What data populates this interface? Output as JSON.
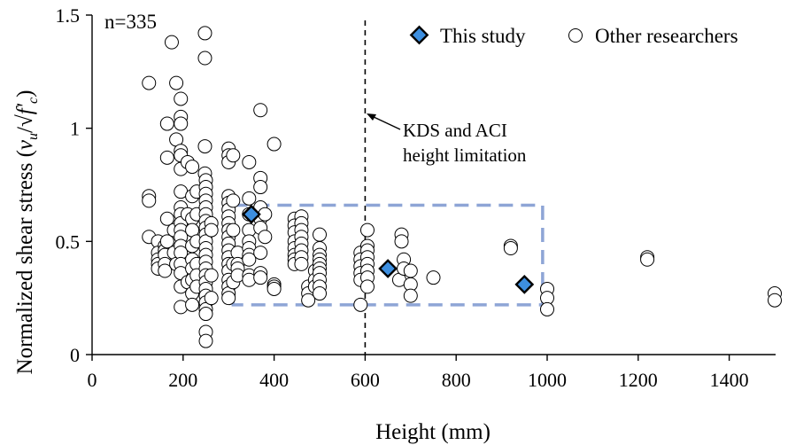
{
  "chart_data": {
    "type": "scatter",
    "title": "",
    "xlabel": "Height (mm)",
    "ylabel": "Normalized shear stress (v_u/√f'_c)",
    "ylabel_parts": {
      "main": "Normalized shear stress (",
      "v": "v",
      "u": "u",
      "slash": "/√",
      "f": "f'",
      "c": "c",
      "close": ")"
    },
    "xlim": [
      0,
      1500
    ],
    "ylim": [
      0,
      1.5
    ],
    "xticks": [
      0,
      200,
      400,
      600,
      800,
      1000,
      1200,
      1400
    ],
    "yticks": [
      0,
      0.5,
      1,
      1.5
    ],
    "xtick_labels": [
      "0",
      "200",
      "400",
      "600",
      "800",
      "1000",
      "1200",
      "1400"
    ],
    "ytick_labels": [
      "0",
      "0.5",
      "1",
      "1.5"
    ],
    "legend_position": "top-right",
    "grid": false,
    "colors": {
      "this_study": "#3d8fe0",
      "highlight_box": "#8ea5d6",
      "marker_edge": "#000000"
    },
    "annotations": {
      "sample_count": "n=335",
      "limit_line_x": 600,
      "limit_label": [
        "KDS and ACI",
        "height limitation"
      ],
      "highlight_box": {
        "x": [
          310,
          990
        ],
        "y": [
          0.22,
          0.66
        ]
      }
    },
    "series": [
      {
        "name": "This study",
        "marker": "diamond",
        "points": [
          [
            350,
            0.62
          ],
          [
            650,
            0.38
          ],
          [
            950,
            0.31
          ]
        ]
      },
      {
        "name": "Other researchers",
        "marker": "open-circle",
        "points": [
          [
            125,
            1.2
          ],
          [
            125,
            0.7
          ],
          [
            125,
            0.68
          ],
          [
            125,
            0.52
          ],
          [
            145,
            0.5
          ],
          [
            145,
            0.45
          ],
          [
            145,
            0.42
          ],
          [
            145,
            0.4
          ],
          [
            145,
            0.38
          ],
          [
            160,
            0.48
          ],
          [
            160,
            0.46
          ],
          [
            160,
            0.44
          ],
          [
            160,
            0.4
          ],
          [
            160,
            0.37
          ],
          [
            165,
            1.02
          ],
          [
            165,
            0.87
          ],
          [
            165,
            0.6
          ],
          [
            165,
            0.5
          ],
          [
            175,
            1.38
          ],
          [
            180,
            0.55
          ],
          [
            180,
            0.45
          ],
          [
            185,
            1.2
          ],
          [
            185,
            0.95
          ],
          [
            185,
            0.4
          ],
          [
            195,
            1.13
          ],
          [
            195,
            1.05
          ],
          [
            195,
            1.02
          ],
          [
            195,
            0.9
          ],
          [
            195,
            0.88
          ],
          [
            195,
            0.82
          ],
          [
            195,
            0.72
          ],
          [
            195,
            0.65
          ],
          [
            195,
            0.62
          ],
          [
            195,
            0.58
          ],
          [
            195,
            0.55
          ],
          [
            195,
            0.52
          ],
          [
            195,
            0.48
          ],
          [
            195,
            0.45
          ],
          [
            195,
            0.4
          ],
          [
            195,
            0.36
          ],
          [
            195,
            0.3
          ],
          [
            195,
            0.21
          ],
          [
            210,
            0.85
          ],
          [
            210,
            0.62
          ],
          [
            210,
            0.32
          ],
          [
            220,
            0.83
          ],
          [
            220,
            0.7
          ],
          [
            220,
            0.6
          ],
          [
            220,
            0.55
          ],
          [
            220,
            0.48
          ],
          [
            220,
            0.42
          ],
          [
            220,
            0.38
          ],
          [
            220,
            0.33
          ],
          [
            220,
            0.27
          ],
          [
            220,
            0.22
          ],
          [
            230,
            0.72
          ],
          [
            230,
            0.62
          ],
          [
            230,
            0.5
          ],
          [
            230,
            0.4
          ],
          [
            230,
            0.35
          ],
          [
            230,
            0.3
          ],
          [
            248,
            1.42
          ],
          [
            248,
            1.31
          ],
          [
            248,
            0.92
          ],
          [
            248,
            0.8
          ],
          [
            250,
            0.77
          ],
          [
            250,
            0.74
          ],
          [
            250,
            0.71
          ],
          [
            250,
            0.68
          ],
          [
            250,
            0.65
          ],
          [
            250,
            0.62
          ],
          [
            250,
            0.59
          ],
          [
            250,
            0.56
          ],
          [
            250,
            0.53
          ],
          [
            250,
            0.5
          ],
          [
            250,
            0.47
          ],
          [
            250,
            0.44
          ],
          [
            250,
            0.41
          ],
          [
            250,
            0.38
          ],
          [
            250,
            0.35
          ],
          [
            250,
            0.32
          ],
          [
            250,
            0.29
          ],
          [
            250,
            0.26
          ],
          [
            250,
            0.23
          ],
          [
            250,
            0.2
          ],
          [
            250,
            0.18
          ],
          [
            250,
            0.1
          ],
          [
            250,
            0.06
          ],
          [
            262,
            0.58
          ],
          [
            262,
            0.55
          ],
          [
            262,
            0.35
          ],
          [
            262,
            0.25
          ],
          [
            300,
            0.91
          ],
          [
            300,
            0.88
          ],
          [
            300,
            0.85
          ],
          [
            300,
            0.7
          ],
          [
            300,
            0.67
          ],
          [
            300,
            0.64
          ],
          [
            300,
            0.61
          ],
          [
            300,
            0.58
          ],
          [
            300,
            0.55
          ],
          [
            300,
            0.52
          ],
          [
            300,
            0.49
          ],
          [
            300,
            0.46
          ],
          [
            300,
            0.43
          ],
          [
            300,
            0.4
          ],
          [
            300,
            0.37
          ],
          [
            300,
            0.33
          ],
          [
            300,
            0.3
          ],
          [
            300,
            0.27
          ],
          [
            300,
            0.25
          ],
          [
            310,
            0.88
          ],
          [
            310,
            0.68
          ],
          [
            310,
            0.55
          ],
          [
            310,
            0.4
          ],
          [
            310,
            0.32
          ],
          [
            320,
            0.45
          ],
          [
            320,
            0.4
          ],
          [
            320,
            0.38
          ],
          [
            320,
            0.35
          ],
          [
            345,
            0.85
          ],
          [
            345,
            0.69
          ],
          [
            345,
            0.62
          ],
          [
            345,
            0.55
          ],
          [
            345,
            0.5
          ],
          [
            345,
            0.47
          ],
          [
            345,
            0.44
          ],
          [
            345,
            0.42
          ],
          [
            345,
            0.35
          ],
          [
            345,
            0.33
          ],
          [
            370,
            1.08
          ],
          [
            370,
            0.78
          ],
          [
            370,
            0.74
          ],
          [
            370,
            0.65
          ],
          [
            370,
            0.6
          ],
          [
            370,
            0.56
          ],
          [
            370,
            0.45
          ],
          [
            370,
            0.36
          ],
          [
            370,
            0.34
          ],
          [
            380,
            0.62
          ],
          [
            380,
            0.52
          ],
          [
            400,
            0.93
          ],
          [
            400,
            0.31
          ],
          [
            400,
            0.3
          ],
          [
            400,
            0.29
          ],
          [
            445,
            0.6
          ],
          [
            445,
            0.57
          ],
          [
            445,
            0.54
          ],
          [
            445,
            0.5
          ],
          [
            445,
            0.47
          ],
          [
            445,
            0.44
          ],
          [
            445,
            0.42
          ],
          [
            445,
            0.4
          ],
          [
            460,
            0.61
          ],
          [
            460,
            0.58
          ],
          [
            460,
            0.55
          ],
          [
            460,
            0.52
          ],
          [
            460,
            0.49
          ],
          [
            460,
            0.46
          ],
          [
            460,
            0.43
          ],
          [
            460,
            0.4
          ],
          [
            475,
            0.3
          ],
          [
            475,
            0.27
          ],
          [
            475,
            0.24
          ],
          [
            490,
            0.37
          ],
          [
            490,
            0.33
          ],
          [
            490,
            0.3
          ],
          [
            500,
            0.53
          ],
          [
            500,
            0.47
          ],
          [
            500,
            0.44
          ],
          [
            500,
            0.42
          ],
          [
            500,
            0.4
          ],
          [
            500,
            0.38
          ],
          [
            500,
            0.36
          ],
          [
            500,
            0.33
          ],
          [
            500,
            0.3
          ],
          [
            500,
            0.27
          ],
          [
            590,
            0.45
          ],
          [
            590,
            0.42
          ],
          [
            590,
            0.39
          ],
          [
            590,
            0.36
          ],
          [
            590,
            0.33
          ],
          [
            590,
            0.22
          ],
          [
            605,
            0.55
          ],
          [
            605,
            0.48
          ],
          [
            605,
            0.46
          ],
          [
            605,
            0.43
          ],
          [
            605,
            0.4
          ],
          [
            605,
            0.37
          ],
          [
            605,
            0.34
          ],
          [
            605,
            0.3
          ],
          [
            675,
            0.33
          ],
          [
            680,
            0.53
          ],
          [
            680,
            0.5
          ],
          [
            685,
            0.42
          ],
          [
            685,
            0.38
          ],
          [
            700,
            0.37
          ],
          [
            700,
            0.31
          ],
          [
            700,
            0.26
          ],
          [
            750,
            0.34
          ],
          [
            920,
            0.48
          ],
          [
            920,
            0.47
          ],
          [
            1000,
            0.29
          ],
          [
            1000,
            0.25
          ],
          [
            1000,
            0.2
          ],
          [
            1220,
            0.43
          ],
          [
            1220,
            0.42
          ],
          [
            1500,
            0.27
          ],
          [
            1500,
            0.24
          ]
        ]
      }
    ]
  }
}
